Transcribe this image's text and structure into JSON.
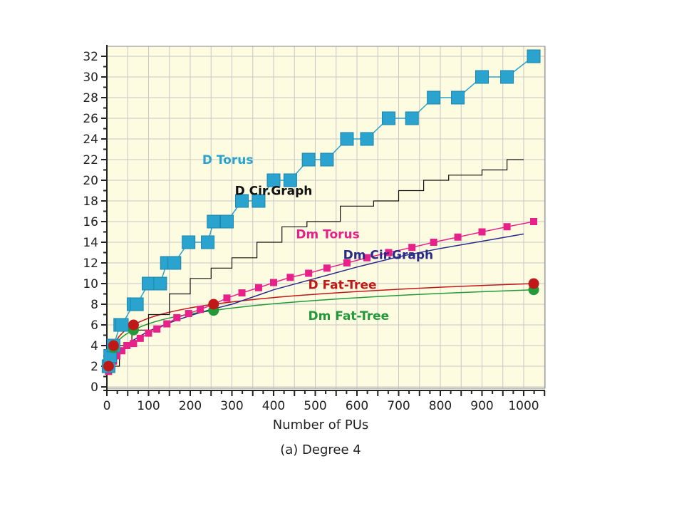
{
  "chart_data": {
    "type": "line",
    "xlabel": "Number of PUs",
    "caption": "(a) Degree 4",
    "xlim": [
      0,
      1050
    ],
    "ylim": [
      0,
      32
    ],
    "x_ticks": [
      0,
      100,
      200,
      300,
      400,
      500,
      600,
      700,
      800,
      900,
      1000
    ],
    "y_ticks": [
      0,
      2,
      4,
      6,
      8,
      10,
      12,
      14,
      16,
      18,
      20,
      22,
      24,
      26,
      28,
      30,
      32
    ],
    "grid": true,
    "legend": "inline labels",
    "colors": {
      "background": "#fdfbe0",
      "grid": "#c8c8c8",
      "d_torus": "#2aa4cf",
      "d_cir_graph": "#111111",
      "dm_torus": "#e8208a",
      "dm_cir_graph": "#2a2a8c",
      "d_fat_tree": "#c01818",
      "dm_fat_tree": "#229a3a"
    },
    "series": [
      {
        "name": "D Torus",
        "color": "#2aa4cf",
        "marker": "square-large",
        "x": [
          4,
          16,
          36,
          64,
          100,
          144,
          196,
          256,
          324,
          400,
          484,
          576,
          676,
          784,
          900,
          1024,
          8,
          32,
          72,
          128,
          162,
          242,
          288,
          364,
          440,
          528,
          624,
          732,
          842,
          960
        ],
        "y": [
          2,
          4,
          6,
          8,
          10,
          12,
          14,
          16,
          18,
          20,
          22,
          24,
          26,
          28,
          30,
          32,
          3,
          6,
          8,
          10,
          12,
          14,
          16,
          18,
          20,
          22,
          24,
          26,
          28,
          30
        ]
      },
      {
        "name": "D Cir.Graph",
        "color": "#111111",
        "marker": "none",
        "x": [
          4,
          30,
          60,
          100,
          150,
          200,
          250,
          300,
          360,
          420,
          480,
          560,
          640,
          700,
          760,
          820,
          900,
          960,
          1000
        ],
        "y": [
          2,
          4,
          5.5,
          7,
          9,
          10.5,
          11.5,
          12.5,
          14,
          15.5,
          16,
          17.5,
          18,
          19,
          20,
          20.5,
          21,
          22,
          22
        ]
      },
      {
        "name": "Dm Torus",
        "color": "#e8208a",
        "marker": "square-small",
        "x": [
          4,
          16,
          24,
          36,
          48,
          64,
          80,
          100,
          120,
          144,
          168,
          196,
          224,
          256,
          288,
          324,
          364,
          400,
          440,
          484,
          528,
          576,
          624,
          676,
          732,
          784,
          842,
          900,
          960,
          1024
        ],
        "y": [
          1.5,
          2.5,
          3,
          3.5,
          4,
          4.2,
          4.7,
          5.2,
          5.6,
          6.1,
          6.7,
          7.1,
          7.5,
          8.0,
          8.6,
          9.1,
          9.6,
          10.1,
          10.6,
          11.0,
          11.5,
          12.0,
          12.5,
          13.0,
          13.5,
          14.0,
          14.5,
          15.0,
          15.5,
          16.0
        ]
      },
      {
        "name": "Dm Cir.Graph",
        "color": "#2a2a8c",
        "marker": "none",
        "x": [
          4,
          50,
          100,
          150,
          200,
          250,
          300,
          400,
          500,
          600,
          700,
          800,
          900,
          1000
        ],
        "y": [
          1.6,
          4.2,
          5.4,
          6.2,
          6.9,
          7.5,
          8.0,
          9.4,
          10.5,
          11.6,
          12.6,
          13.4,
          14.1,
          14.8
        ]
      },
      {
        "name": "D Fat-Tree",
        "color": "#c01818",
        "marker": "circle",
        "x": [
          4,
          16,
          64,
          256,
          1024
        ],
        "y": [
          2,
          4,
          6,
          8,
          10
        ]
      },
      {
        "name": "Dm Fat-Tree",
        "color": "#229a3a",
        "marker": "circle",
        "x": [
          4,
          16,
          64,
          256,
          1024
        ],
        "y": [
          2,
          3.8,
          5.5,
          7.4,
          9.4
        ]
      }
    ]
  }
}
